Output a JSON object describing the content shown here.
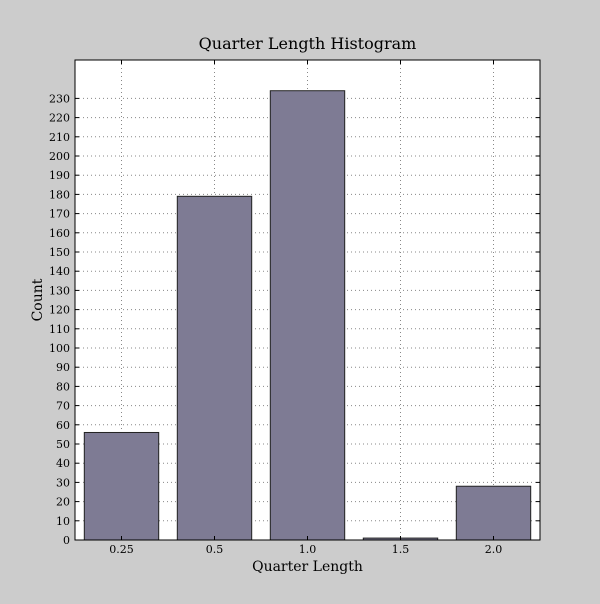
{
  "chart_data": {
    "type": "bar",
    "title": "Quarter Length Histogram",
    "xlabel": "Quarter Length",
    "ylabel": "Count",
    "categories": [
      "0.25",
      "0.5",
      "1.0",
      "1.5",
      "2.0"
    ],
    "values": [
      56,
      179,
      234,
      1,
      28
    ],
    "ylim": [
      0,
      250
    ],
    "yticks": [
      0,
      10,
      20,
      30,
      40,
      50,
      60,
      70,
      80,
      90,
      100,
      110,
      120,
      130,
      140,
      150,
      160,
      170,
      180,
      190,
      200,
      210,
      220,
      230
    ],
    "grid": true,
    "colors": {
      "figure_background": "#cccccc",
      "plot_background": "#ffffff",
      "bar_fill": "#7e7b94",
      "bar_edge": "#222222",
      "grid": "#888888"
    }
  }
}
